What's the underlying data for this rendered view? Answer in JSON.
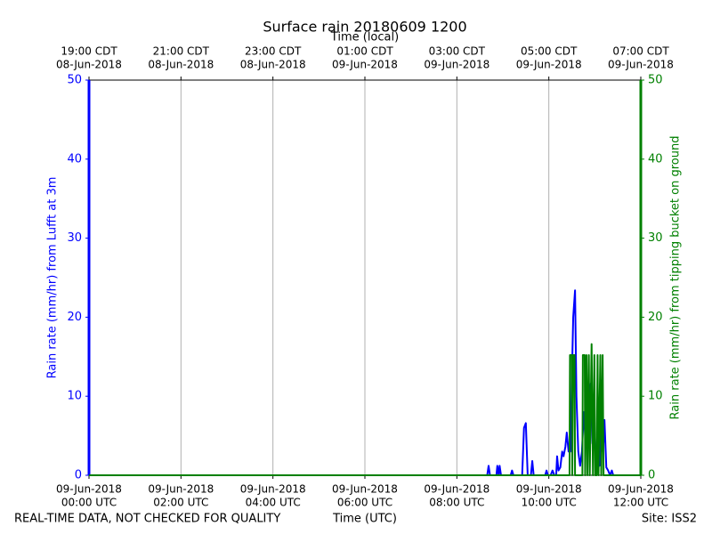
{
  "chart_data": {
    "type": "line",
    "title": "Surface rain 20180609 1200",
    "top_xlabel": "Time (local)",
    "xlabel": "Time (UTC)",
    "ylabel": "Rain rate (mm/hr) from Lufft at 3m",
    "y2label": "Rain rate (mm/hr) from tipping bucket on ground",
    "footer_left": "REAL-TIME DATA, NOT CHECKED FOR QUALITY",
    "footer_right": "Site: ISS2",
    "xlim": [
      0,
      12
    ],
    "xticks": [
      {
        "value": 0,
        "label": [
          "09-Jun-2018",
          "00:00 UTC"
        ]
      },
      {
        "value": 2,
        "label": [
          "09-Jun-2018",
          "02:00 UTC"
        ]
      },
      {
        "value": 4,
        "label": [
          "09-Jun-2018",
          "04:00 UTC"
        ]
      },
      {
        "value": 6,
        "label": [
          "09-Jun-2018",
          "06:00 UTC"
        ]
      },
      {
        "value": 8,
        "label": [
          "09-Jun-2018",
          "08:00 UTC"
        ]
      },
      {
        "value": 10,
        "label": [
          "09-Jun-2018",
          "10:00 UTC"
        ]
      },
      {
        "value": 12,
        "label": [
          "09-Jun-2018",
          "12:00 UTC"
        ]
      }
    ],
    "top_xticks": [
      {
        "value": 0,
        "label": [
          "19:00 CDT",
          "08-Jun-2018"
        ]
      },
      {
        "value": 2,
        "label": [
          "21:00 CDT",
          "08-Jun-2018"
        ]
      },
      {
        "value": 4,
        "label": [
          "23:00 CDT",
          "08-Jun-2018"
        ]
      },
      {
        "value": 6,
        "label": [
          "01:00 CDT",
          "09-Jun-2018"
        ]
      },
      {
        "value": 8,
        "label": [
          "03:00 CDT",
          "09-Jun-2018"
        ]
      },
      {
        "value": 10,
        "label": [
          "05:00 CDT",
          "09-Jun-2018"
        ]
      },
      {
        "value": 12,
        "label": [
          "07:00 CDT",
          "09-Jun-2018"
        ]
      }
    ],
    "ylim": [
      0,
      50
    ],
    "yticks": [
      0,
      10,
      20,
      30,
      40,
      50
    ],
    "y2lim": [
      0,
      50
    ],
    "y2ticks": [
      0,
      10,
      20,
      30,
      40,
      50
    ],
    "grid": true,
    "series": [
      {
        "color": "#0000ff",
        "axis": "y",
        "x": [
          0,
          8.66,
          8.69,
          8.72,
          8.86,
          8.88,
          8.91,
          8.93,
          8.96,
          9.17,
          9.2,
          9.23,
          9.42,
          9.46,
          9.5,
          9.54,
          9.61,
          9.64,
          9.67,
          9.92,
          9.95,
          9.98,
          10.04,
          10.08,
          10.12,
          10.16,
          10.18,
          10.21,
          10.25,
          10.29,
          10.32,
          10.36,
          10.39,
          10.43,
          10.47,
          10.5,
          10.53,
          10.57,
          10.6,
          10.64,
          10.68,
          10.72,
          10.76,
          10.8,
          10.83,
          10.87,
          10.91,
          10.95,
          10.99,
          11.03,
          11.06,
          11.1,
          11.14,
          11.18,
          11.21,
          11.25,
          11.29,
          11.33,
          11.37,
          11.4,
          12
        ],
        "values": [
          0,
          0,
          1.2,
          0,
          0,
          1.2,
          0,
          1.2,
          0,
          0,
          0.6,
          0,
          0,
          6,
          6.6,
          0,
          0,
          1.8,
          0,
          0,
          0.6,
          0,
          0,
          0.6,
          0,
          0,
          2.4,
          0.6,
          1,
          3,
          2.4,
          3.6,
          5.4,
          3,
          3,
          12,
          20,
          23.4,
          10,
          3,
          1.2,
          3,
          8,
          4,
          5,
          9,
          11.6,
          4,
          6,
          2,
          4,
          1.2,
          12,
          3,
          7,
          1,
          0.6,
          0,
          0.6,
          0,
          0
        ]
      },
      {
        "color": "#008000",
        "axis": "y2",
        "x": [
          0,
          10.45,
          10.46,
          10.5,
          10.51,
          10.53,
          10.56,
          10.57,
          10.73,
          10.74,
          10.78,
          10.79,
          10.82,
          10.84,
          10.87,
          10.89,
          10.93,
          10.96,
          10.99,
          11.01,
          11.04,
          11.06,
          11.08,
          11.12,
          11.14,
          11.17,
          11.19,
          12
        ],
        "values": [
          0,
          0,
          15.2,
          15.2,
          0,
          15.2,
          15.2,
          0,
          0,
          15.2,
          15.2,
          0,
          15.2,
          0,
          15.2,
          0,
          16.6,
          0,
          15.2,
          0,
          0,
          15.2,
          0,
          15.2,
          0,
          15.2,
          0,
          0
        ]
      }
    ]
  }
}
